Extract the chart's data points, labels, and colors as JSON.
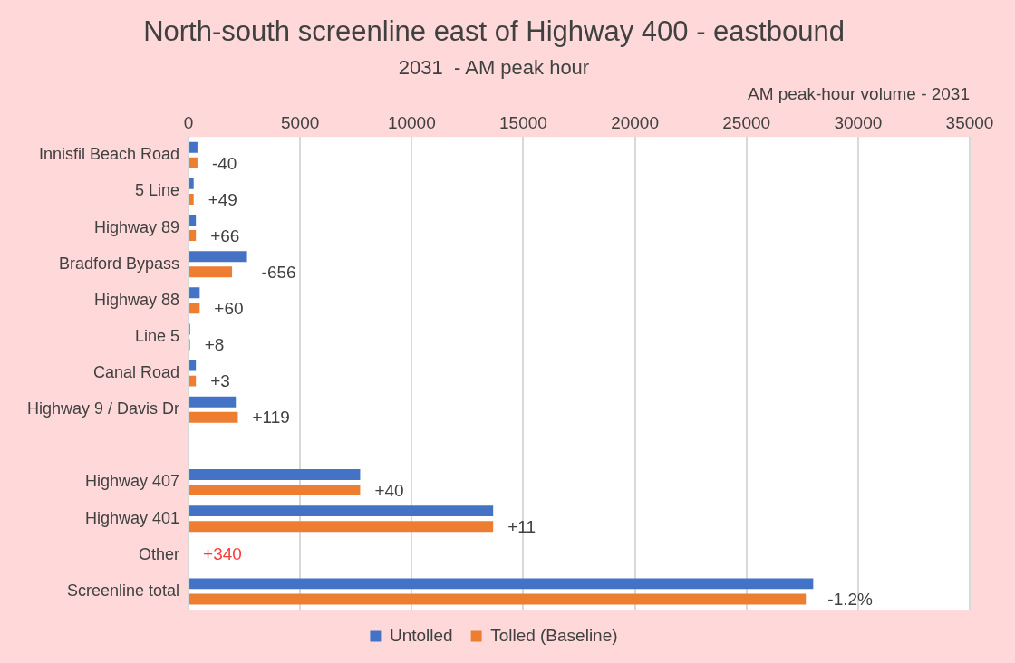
{
  "chart_data": {
    "type": "bar",
    "orientation": "horizontal",
    "title": "North-south screenline east of Highway 400 - eastbound",
    "subtitle": "2031  - AM peak hour",
    "xlabel": "AM peak-hour volume - 2031",
    "categories": [
      "Innisfil Beach Road",
      "5 Line",
      "Highway 89",
      "Bradford Bypass",
      "Highway 88",
      "Line 5",
      "Canal Road",
      "Highway 9 / Davis Dr",
      null,
      "Highway 407",
      "Highway 401",
      "Other",
      "Screenline total"
    ],
    "series": [
      {
        "name": "Untolled",
        "color": "#4472c4",
        "values": [
          400,
          230,
          330,
          2620,
          500,
          70,
          330,
          2120,
          null,
          7690,
          13650,
          null,
          27990
        ]
      },
      {
        "name": "Tolled (Baseline)",
        "color": "#ed7d31",
        "values": [
          400,
          230,
          330,
          1950,
          500,
          70,
          330,
          2210,
          null,
          7690,
          13650,
          null,
          27660
        ]
      }
    ],
    "xlim": [
      0,
      35000
    ],
    "xticks": [
      0,
      5000,
      10000,
      15000,
      20000,
      25000,
      30000,
      35000
    ],
    "grid": "x",
    "legend": "bottom",
    "annotations": [
      {
        "text": "-40",
        "x": 400,
        "y": "Innisfil Beach Road"
      },
      {
        "text": "+49",
        "x": 230,
        "y": "5 Line"
      },
      {
        "text": "+66",
        "x": 330,
        "y": "Highway 89"
      },
      {
        "text": "-656",
        "x": 2620,
        "y": "Bradford Bypass"
      },
      {
        "text": "+60",
        "x": 500,
        "y": "Highway 88"
      },
      {
        "text": "+8",
        "x": 70,
        "y": "Line 5"
      },
      {
        "text": "+3",
        "x": 330,
        "y": "Canal Road"
      },
      {
        "text": "+119",
        "x": 2210,
        "y": "Highway 9 / Davis Dr"
      },
      {
        "text": "+40",
        "x": 7690,
        "y": "Highway 407"
      },
      {
        "text": "+11",
        "x": 13650,
        "y": "Highway 401"
      },
      "+340",
      {
        "text": "-1.2%",
        "x": 27990,
        "y": "Screenline total"
      }
    ]
  }
}
